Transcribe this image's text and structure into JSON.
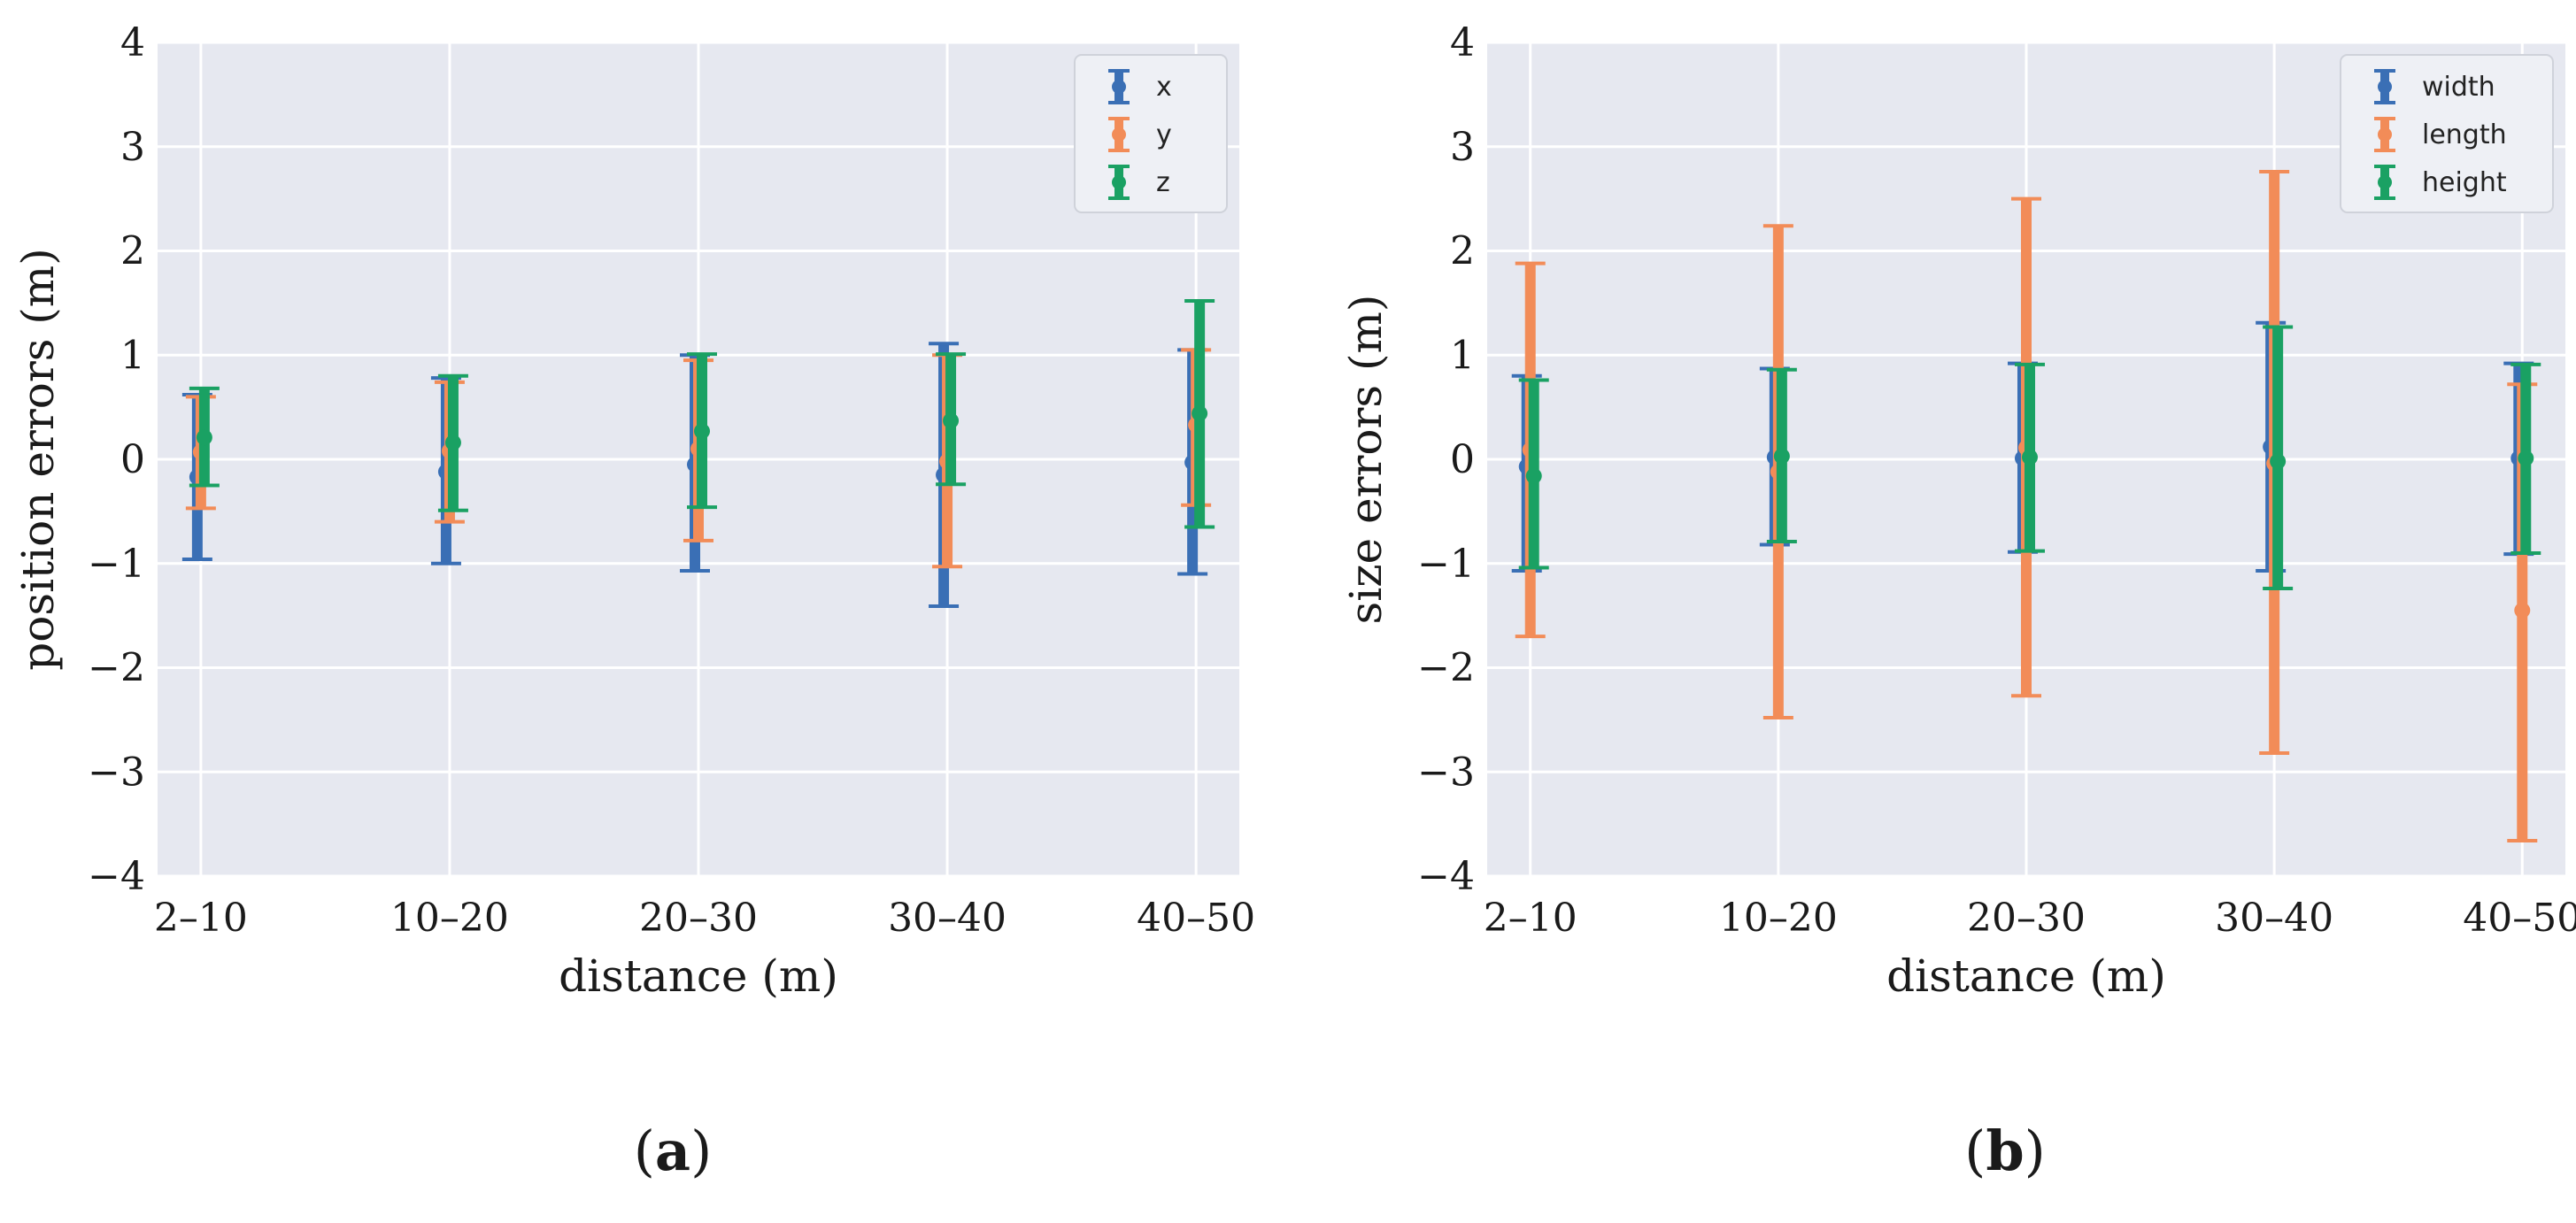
{
  "chart_data": [
    {
      "type": "errorbar",
      "panel_label": "a",
      "xlabel": "distance (m)",
      "ylabel": "position errors (m)",
      "categories": [
        "2–10",
        "10–20",
        "20–30",
        "30–40",
        "40–50"
      ],
      "ylim": [
        -4,
        4
      ],
      "yticks": [
        -4,
        -3,
        -2,
        -1,
        0,
        1,
        2,
        3,
        4
      ],
      "ytick_labels": [
        "−4",
        "−3",
        "−2",
        "−1",
        "0",
        "1",
        "2",
        "3",
        "4"
      ],
      "grid": true,
      "legend": "top-right",
      "series": [
        {
          "name": "x",
          "color": "#3a6fb5",
          "values": [
            -0.17,
            -0.12,
            -0.05,
            -0.15,
            -0.03
          ],
          "lower": [
            -0.96,
            -1.0,
            -1.07,
            -1.41,
            -1.1
          ],
          "upper": [
            0.62,
            0.78,
            1.0,
            1.11,
            1.05
          ]
        },
        {
          "name": "y",
          "color": "#f28c58",
          "values": [
            0.07,
            0.08,
            0.1,
            -0.02,
            0.33
          ],
          "lower": [
            -0.47,
            -0.6,
            -0.78,
            -1.03,
            -0.44
          ],
          "upper": [
            0.6,
            0.74,
            0.95,
            1.0,
            1.05
          ]
        },
        {
          "name": "z",
          "color": "#1aa163",
          "values": [
            0.21,
            0.16,
            0.27,
            0.37,
            0.44
          ],
          "lower": [
            -0.25,
            -0.49,
            -0.46,
            -0.24,
            -0.65
          ],
          "upper": [
            0.68,
            0.8,
            1.01,
            1.01,
            1.52
          ]
        }
      ]
    },
    {
      "type": "errorbar",
      "panel_label": "b",
      "xlabel": "distance (m)",
      "ylabel": "size errors (m)",
      "categories": [
        "2–10",
        "10–20",
        "20–30",
        "30–40",
        "40–50"
      ],
      "ylim": [
        -4,
        4
      ],
      "yticks": [
        -4,
        -3,
        -2,
        -1,
        0,
        1,
        2,
        3,
        4
      ],
      "ytick_labels": [
        "−4",
        "−3",
        "−2",
        "−1",
        "0",
        "1",
        "2",
        "3",
        "4"
      ],
      "grid": true,
      "legend": "top-right",
      "series": [
        {
          "name": "width",
          "color": "#3a6fb5",
          "values": [
            -0.07,
            0.02,
            0.01,
            0.12,
            0.01
          ],
          "lower": [
            -1.07,
            -0.82,
            -0.89,
            -1.07,
            -0.91
          ],
          "upper": [
            0.8,
            0.87,
            0.92,
            1.31,
            0.92
          ]
        },
        {
          "name": "length",
          "color": "#f28c58",
          "values": [
            0.09,
            -0.12,
            0.11,
            -0.04,
            -1.45
          ],
          "lower": [
            -1.7,
            -2.48,
            -2.27,
            -2.82,
            -3.66
          ],
          "upper": [
            1.88,
            2.24,
            2.5,
            2.76,
            0.72
          ]
        },
        {
          "name": "height",
          "color": "#1aa163",
          "values": [
            -0.16,
            0.03,
            0.02,
            -0.02,
            0.01
          ],
          "lower": [
            -1.04,
            -0.79,
            -0.88,
            -1.24,
            -0.9
          ],
          "upper": [
            0.76,
            0.86,
            0.91,
            1.27,
            0.91
          ]
        }
      ]
    }
  ]
}
